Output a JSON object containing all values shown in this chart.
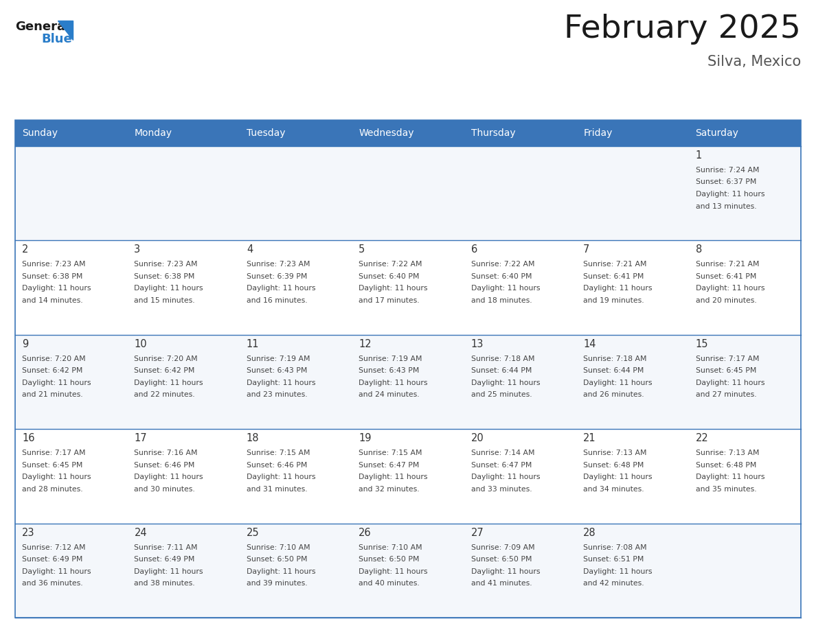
{
  "title": "February 2025",
  "subtitle": "Silva, Mexico",
  "days_of_week": [
    "Sunday",
    "Monday",
    "Tuesday",
    "Wednesday",
    "Thursday",
    "Friday",
    "Saturday"
  ],
  "header_bg": "#3a75b8",
  "header_text_color": "#ffffff",
  "grid_color": "#3a75b8",
  "text_color": "#444444",
  "day_num_color": "#333333",
  "title_color": "#1a1a1a",
  "subtitle_color": "#555555",
  "logo_general_color": "#1a1a1a",
  "logo_blue_color": "#2a7dc9",
  "cell_bg_odd": "#f4f7fb",
  "cell_bg_even": "#ffffff",
  "calendar_data": [
    [
      null,
      null,
      null,
      null,
      null,
      null,
      1
    ],
    [
      2,
      3,
      4,
      5,
      6,
      7,
      8
    ],
    [
      9,
      10,
      11,
      12,
      13,
      14,
      15
    ],
    [
      16,
      17,
      18,
      19,
      20,
      21,
      22
    ],
    [
      23,
      24,
      25,
      26,
      27,
      28,
      null
    ]
  ],
  "sunrise_data": {
    "1": "7:24 AM",
    "2": "7:23 AM",
    "3": "7:23 AM",
    "4": "7:23 AM",
    "5": "7:22 AM",
    "6": "7:22 AM",
    "7": "7:21 AM",
    "8": "7:21 AM",
    "9": "7:20 AM",
    "10": "7:20 AM",
    "11": "7:19 AM",
    "12": "7:19 AM",
    "13": "7:18 AM",
    "14": "7:18 AM",
    "15": "7:17 AM",
    "16": "7:17 AM",
    "17": "7:16 AM",
    "18": "7:15 AM",
    "19": "7:15 AM",
    "20": "7:14 AM",
    "21": "7:13 AM",
    "22": "7:13 AM",
    "23": "7:12 AM",
    "24": "7:11 AM",
    "25": "7:10 AM",
    "26": "7:10 AM",
    "27": "7:09 AM",
    "28": "7:08 AM"
  },
  "sunset_data": {
    "1": "6:37 PM",
    "2": "6:38 PM",
    "3": "6:38 PM",
    "4": "6:39 PM",
    "5": "6:40 PM",
    "6": "6:40 PM",
    "7": "6:41 PM",
    "8": "6:41 PM",
    "9": "6:42 PM",
    "10": "6:42 PM",
    "11": "6:43 PM",
    "12": "6:43 PM",
    "13": "6:44 PM",
    "14": "6:44 PM",
    "15": "6:45 PM",
    "16": "6:45 PM",
    "17": "6:46 PM",
    "18": "6:46 PM",
    "19": "6:47 PM",
    "20": "6:47 PM",
    "21": "6:48 PM",
    "22": "6:48 PM",
    "23": "6:49 PM",
    "24": "6:49 PM",
    "25": "6:50 PM",
    "26": "6:50 PM",
    "27": "6:50 PM",
    "28": "6:51 PM"
  },
  "daylight_data": {
    "1": "11 hours and 13 minutes.",
    "2": "11 hours and 14 minutes.",
    "3": "11 hours and 15 minutes.",
    "4": "11 hours and 16 minutes.",
    "5": "11 hours and 17 minutes.",
    "6": "11 hours and 18 minutes.",
    "7": "11 hours and 19 minutes.",
    "8": "11 hours and 20 minutes.",
    "9": "11 hours and 21 minutes.",
    "10": "11 hours and 22 minutes.",
    "11": "11 hours and 23 minutes.",
    "12": "11 hours and 24 minutes.",
    "13": "11 hours and 25 minutes.",
    "14": "11 hours and 26 minutes.",
    "15": "11 hours and 27 minutes.",
    "16": "11 hours and 28 minutes.",
    "17": "11 hours and 30 minutes.",
    "18": "11 hours and 31 minutes.",
    "19": "11 hours and 32 minutes.",
    "20": "11 hours and 33 minutes.",
    "21": "11 hours and 34 minutes.",
    "22": "11 hours and 35 minutes.",
    "23": "11 hours and 36 minutes.",
    "24": "11 hours and 38 minutes.",
    "25": "11 hours and 39 minutes.",
    "26": "11 hours and 40 minutes.",
    "27": "11 hours and 41 minutes.",
    "28": "11 hours and 42 minutes."
  }
}
